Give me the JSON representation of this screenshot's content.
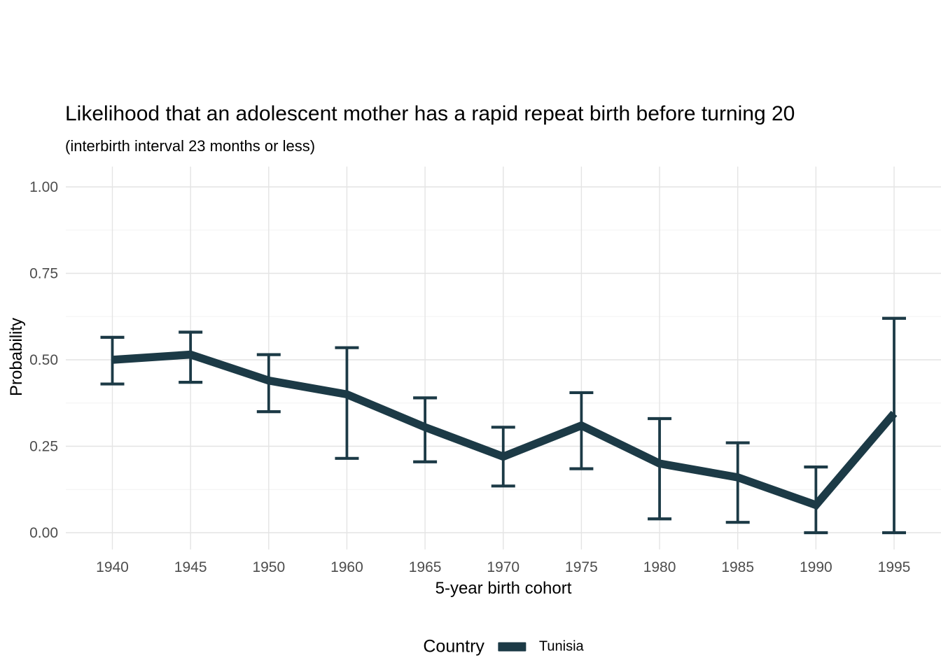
{
  "chart_data": {
    "type": "line",
    "title": "Likelihood that an adolescent mother has a rapid repeat birth before turning 20",
    "subtitle": "(interbirth interval 23 months or less)",
    "xlabel": "5-year birth cohort",
    "ylabel": "Probability",
    "categories": [
      "1940",
      "1945",
      "1950",
      "1960",
      "1965",
      "1970",
      "1975",
      "1980",
      "1985",
      "1990",
      "1995"
    ],
    "series": [
      {
        "name": "Tunisia",
        "values": [
          0.5,
          0.515,
          0.44,
          0.4,
          0.305,
          0.22,
          0.31,
          0.2,
          0.16,
          0.08,
          0.345
        ],
        "lower": [
          0.43,
          0.435,
          0.35,
          0.215,
          0.205,
          0.135,
          0.185,
          0.04,
          0.03,
          0.0,
          0.0
        ],
        "upper": [
          0.565,
          0.58,
          0.515,
          0.535,
          0.39,
          0.305,
          0.405,
          0.33,
          0.26,
          0.19,
          0.62
        ]
      }
    ],
    "error_bars": true,
    "ylim": [
      0,
      1
    ],
    "y_ticks": [
      {
        "value": 0.0,
        "label": "0.00"
      },
      {
        "value": 0.25,
        "label": "0.25"
      },
      {
        "value": 0.5,
        "label": "0.50"
      },
      {
        "value": 0.75,
        "label": "0.75"
      },
      {
        "value": 1.0,
        "label": "1.00"
      }
    ],
    "y_minor_ticks": [
      0.125,
      0.375,
      0.625,
      0.875
    ],
    "grid": true,
    "legend": {
      "position": "bottom",
      "title": "Country",
      "entries": [
        {
          "label": "Tunisia",
          "color": "#1c3a46"
        }
      ]
    },
    "colors": {
      "line": "#1c3a46",
      "grid_major": "#e4e4e4",
      "grid_minor": "#f2f2f2",
      "tick_text": "#4d4d4d",
      "text": "#000000",
      "background": "#ffffff"
    }
  }
}
